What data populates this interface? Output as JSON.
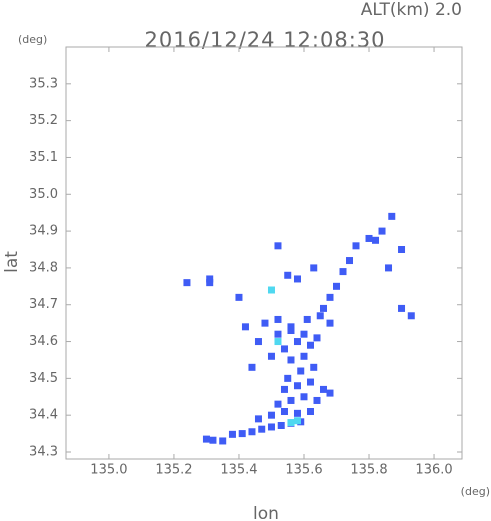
{
  "chart_data": {
    "type": "scatter",
    "title": "2016/12/24 12:08:30",
    "subtitle": "ALT(km) 2.0",
    "x_label": "lon",
    "y_label": "lat",
    "x_unit": "(deg)",
    "y_unit": "(deg)",
    "xlim": [
      134.868,
      136.086
    ],
    "ylim": [
      34.281,
      35.4
    ],
    "xticks": [
      {
        "value": 135.0,
        "label": "135.0"
      },
      135.2,
      135.4,
      135.6,
      135.8,
      {
        "value": 136.0,
        "label": "136.0"
      }
    ],
    "yticks": [
      35.3,
      35.2,
      35.1,
      {
        "value": 35.0,
        "label": "35.0"
      },
      34.9,
      34.8,
      34.7,
      34.6,
      34.5,
      34.4,
      34.3
    ],
    "series": [
      {
        "color": "#3f5cf5",
        "x": [
          135.3,
          135.32,
          135.35,
          135.38,
          135.41,
          135.44,
          135.47,
          135.5,
          135.53,
          135.56,
          135.59,
          135.46,
          135.5,
          135.54,
          135.58,
          135.62,
          135.52,
          135.56,
          135.6,
          135.64,
          135.54,
          135.58,
          135.62,
          135.66,
          135.68,
          135.55,
          135.59,
          135.63,
          135.56,
          135.6,
          135.54,
          135.58,
          135.62,
          135.52,
          135.56,
          135.6,
          135.64,
          135.48,
          135.52,
          135.56,
          135.61,
          135.65,
          135.68,
          135.46,
          135.44,
          135.5,
          135.66,
          135.68,
          135.7,
          135.72,
          135.74,
          135.76,
          135.8,
          135.84,
          135.87,
          135.82,
          135.9,
          135.86,
          135.93,
          135.9,
          135.24,
          135.31,
          135.31,
          135.4,
          135.52,
          135.55,
          135.58,
          135.63,
          135.42
        ],
        "y": [
          34.335,
          34.332,
          34.33,
          34.348,
          34.35,
          34.355,
          34.362,
          34.368,
          34.372,
          34.378,
          34.382,
          34.39,
          34.4,
          34.41,
          34.405,
          34.41,
          34.43,
          34.44,
          34.45,
          34.44,
          34.47,
          34.48,
          34.49,
          34.47,
          34.46,
          34.5,
          34.52,
          34.53,
          34.55,
          34.56,
          34.58,
          34.6,
          34.59,
          34.62,
          34.63,
          34.62,
          34.61,
          34.65,
          34.66,
          34.64,
          34.66,
          34.67,
          34.65,
          34.6,
          34.53,
          34.56,
          34.69,
          34.72,
          34.75,
          34.79,
          34.82,
          34.86,
          34.88,
          34.9,
          34.94,
          34.875,
          34.85,
          34.8,
          34.67,
          34.69,
          34.76,
          34.77,
          34.76,
          34.72,
          34.86,
          34.78,
          34.77,
          34.8,
          34.64
        ]
      },
      {
        "color": "#4fd8f0",
        "x": [
          135.56,
          135.58,
          135.52,
          135.5
        ],
        "y": [
          34.38,
          34.385,
          34.6,
          34.74
        ]
      }
    ]
  }
}
